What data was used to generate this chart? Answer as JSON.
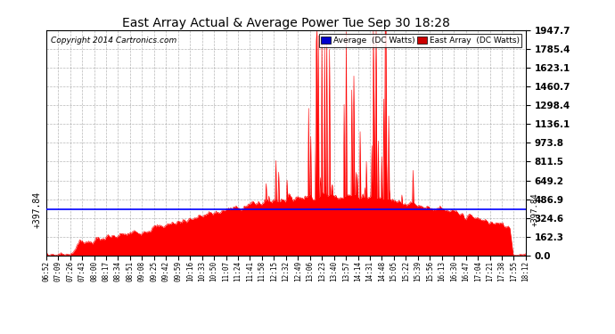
{
  "title": "East Array Actual & Average Power Tue Sep 30 18:28",
  "copyright": "Copyright 2014 Cartronics.com",
  "legend_avg": "Average  (DC Watts)",
  "legend_east": "East Array  (DC Watts)",
  "ylabel_left": "+397.84",
  "ylabel_right": "+397.84",
  "avg_line_value": 397.84,
  "ymax": 1947.7,
  "yticks": [
    0.0,
    162.3,
    324.6,
    486.9,
    649.2,
    811.5,
    973.8,
    1136.1,
    1298.4,
    1460.7,
    1623.1,
    1785.4,
    1947.7
  ],
  "ytick_labels": [
    "0.0",
    "162.3",
    "324.6",
    "486.9",
    "649.2",
    "811.5",
    "973.8",
    "1136.1",
    "1298.4",
    "1460.7",
    "1623.1",
    "1785.4",
    "1947.7"
  ],
  "background_color": "#ffffff",
  "fill_color": "#ff0000",
  "avg_line_color": "#0000ff",
  "grid_color": "#888888",
  "title_color": "#000000",
  "xtick_labels": [
    "06:52",
    "07:09",
    "07:26",
    "07:43",
    "08:00",
    "08:17",
    "08:34",
    "08:51",
    "09:08",
    "09:25",
    "09:42",
    "09:59",
    "10:16",
    "10:33",
    "10:50",
    "11:07",
    "11:24",
    "11:41",
    "11:58",
    "12:15",
    "12:32",
    "12:49",
    "13:06",
    "13:23",
    "13:40",
    "13:57",
    "14:14",
    "14:31",
    "14:48",
    "15:05",
    "15:22",
    "15:39",
    "15:56",
    "16:13",
    "16:30",
    "16:47",
    "17:04",
    "17:21",
    "17:38",
    "17:55",
    "18:12"
  ]
}
